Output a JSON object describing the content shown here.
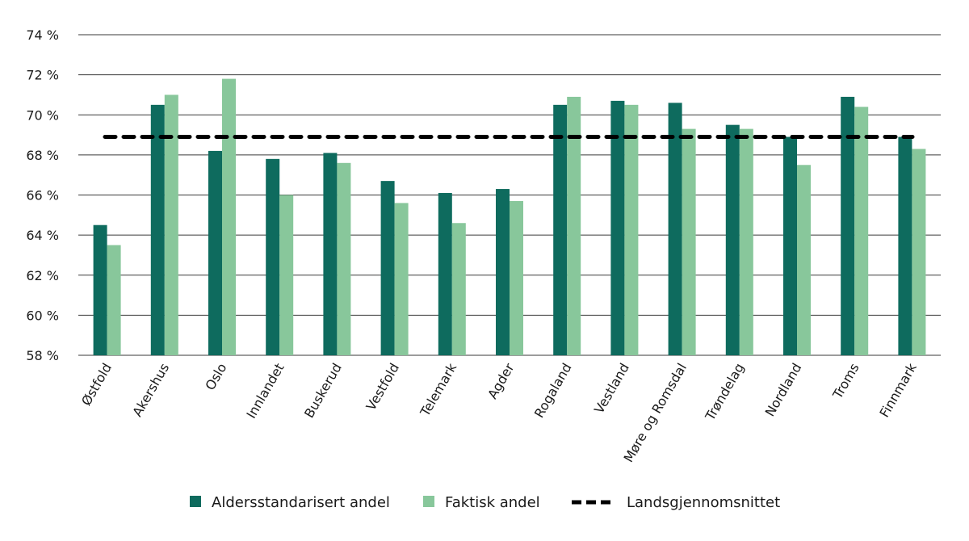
{
  "chart_data": {
    "type": "bar",
    "title": "",
    "xlabel": "",
    "ylabel": "",
    "ylim": [
      58,
      74
    ],
    "yticks": [
      "58 %",
      "60 %",
      "62 %",
      "64 %",
      "66 %",
      "68 %",
      "70 %",
      "72 %",
      "74 %"
    ],
    "grid": true,
    "legend_placement": "bottom",
    "categories": [
      "Østfold",
      "Akershus",
      "Oslo",
      "Innlandet",
      "Buskerud",
      "Vestfold",
      "Telemark",
      "Agder",
      "Rogaland",
      "Vestland",
      "Møre og Romsdal",
      "Trøndelag",
      "Nordland",
      "Troms",
      "Finnmark"
    ],
    "series": [
      {
        "name": "Aldersstandarisert andel",
        "color": "#0e6b5e",
        "values": [
          64.5,
          70.5,
          68.2,
          67.8,
          68.1,
          66.7,
          66.1,
          66.3,
          70.5,
          70.7,
          70.6,
          69.5,
          68.9,
          70.9,
          68.9
        ]
      },
      {
        "name": "Faktisk andel",
        "color": "#88c79b",
        "values": [
          63.5,
          71.0,
          71.8,
          66.0,
          67.6,
          65.6,
          64.6,
          65.7,
          70.9,
          70.5,
          69.3,
          69.3,
          67.5,
          70.4,
          68.3
        ]
      }
    ],
    "reference_line": {
      "name": "Landsgjennomsnittet",
      "value": 68.9,
      "color": "#000000",
      "style": "dashed"
    }
  }
}
